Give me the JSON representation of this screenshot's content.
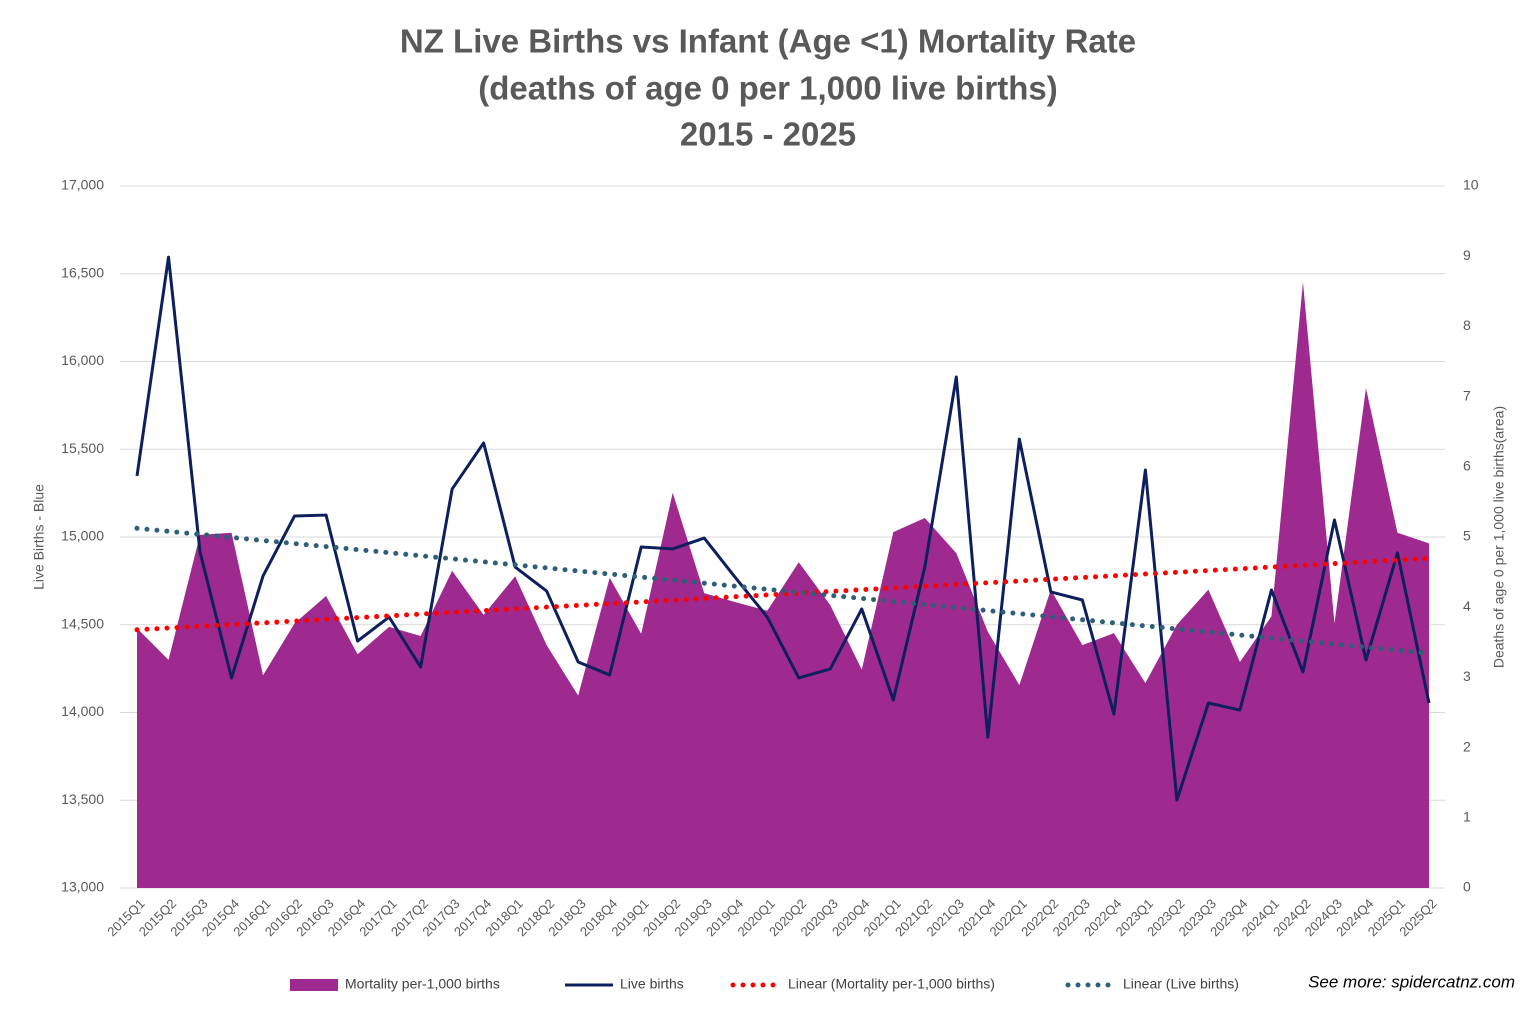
{
  "chart_data": {
    "type": "combo",
    "title": [
      "NZ Live Births vs Infant (Age <1) Mortality Rate",
      "(deaths of age 0 per 1,000 live births)",
      "2015 - 2025"
    ],
    "ylabel": "Live Births - Blue",
    "y2label": "Deaths of age 0 per 1,000 live births(area)",
    "annotation": "See more: spidercatnz.com",
    "categories": [
      "2015Q1",
      "2015Q2",
      "2015Q3",
      "2015Q4",
      "2016Q1",
      "2016Q2",
      "2016Q3",
      "2016Q4",
      "2017Q1",
      "2017Q2",
      "2017Q3",
      "2017Q4",
      "2018Q1",
      "2018Q2",
      "2018Q3",
      "2018Q4",
      "2019Q1",
      "2019Q2",
      "2019Q3",
      "2019Q4",
      "2020Q1",
      "2020Q2",
      "2020Q3",
      "2020Q4",
      "2021Q1",
      "2021Q2",
      "2021Q3",
      "2021Q4",
      "2022Q1",
      "2022Q2",
      "2022Q3",
      "2022Q4",
      "2023Q1",
      "2023Q2",
      "2023Q3",
      "2023Q4",
      "2024Q1",
      "2024Q2",
      "2024Q3",
      "2024Q4",
      "2025Q1",
      "2025Q2"
    ],
    "series": [
      {
        "name": "Mortality per-1,000 births",
        "type": "area",
        "axis": "y2",
        "color": "#9e2a8f",
        "values": [
          3.7,
          3.25,
          5.03,
          5.06,
          3.03,
          3.77,
          4.16,
          3.33,
          3.72,
          3.59,
          4.52,
          3.89,
          4.44,
          3.46,
          2.74,
          4.42,
          3.62,
          5.63,
          4.2,
          4.07,
          3.95,
          4.64,
          4.03,
          3.11,
          5.07,
          5.27,
          4.77,
          3.65,
          2.89,
          4.25,
          3.46,
          3.63,
          2.92,
          3.75,
          4.25,
          3.22,
          3.87,
          8.63,
          3.77,
          7.12,
          5.06,
          4.91
        ]
      },
      {
        "name": "Live births",
        "type": "line",
        "axis": "y",
        "color": "#0d1f5c",
        "values": [
          15348,
          16595,
          14915,
          14197,
          14778,
          15120,
          15125,
          14407,
          14544,
          14259,
          15273,
          15536,
          14829,
          14692,
          14288,
          14214,
          14943,
          14932,
          14994,
          14766,
          14544,
          14197,
          14248,
          14590,
          14071,
          14829,
          15912,
          13860,
          15558,
          14687,
          14641,
          13991,
          15382,
          13501,
          14054,
          14014,
          14698,
          14231,
          15097,
          14299,
          14909,
          14054
        ]
      }
    ],
    "trendlines": [
      {
        "name": "Linear (Mortality per-1,000 births)",
        "series": 0,
        "color": "#ff0000"
      },
      {
        "name": "Linear (Live births)",
        "series": 1,
        "color": "#2e5f78"
      }
    ],
    "ylim": [
      13000,
      17000
    ],
    "yticks": [
      {
        "value": 13000,
        "label": "13,000"
      },
      {
        "value": 13500,
        "label": "13,500"
      },
      {
        "value": 14000,
        "label": "14,000"
      },
      {
        "value": 14500,
        "label": "14,500"
      },
      {
        "value": 15000,
        "label": "15,000"
      },
      {
        "value": 15500,
        "label": "15,500"
      },
      {
        "value": 16000,
        "label": "16,000"
      },
      {
        "value": 16500,
        "label": "16,500"
      },
      {
        "value": 17000,
        "label": "17,000"
      }
    ],
    "y2lim": [
      0,
      10
    ],
    "y2ticks": [
      0,
      1,
      2,
      3,
      4,
      5,
      6,
      7,
      8,
      9,
      10
    ],
    "grid": true
  }
}
